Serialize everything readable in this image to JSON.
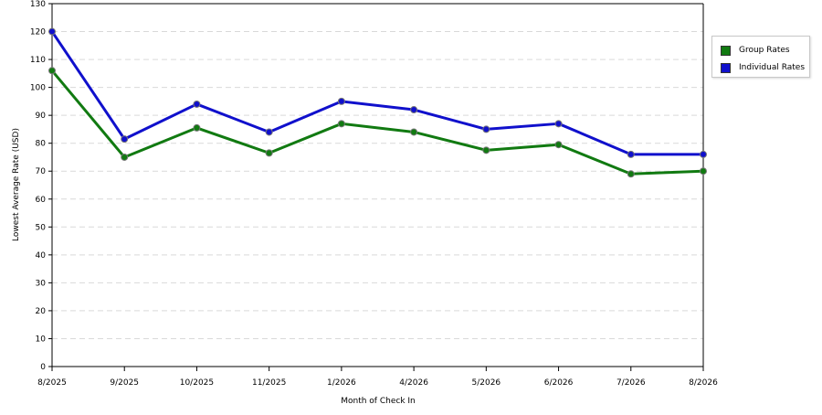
{
  "chart_data": {
    "type": "line",
    "xlabel": "Month of Check In",
    "ylabel": "Lowest Average Rate (USD)",
    "categories": [
      "8/2025",
      "9/2025",
      "10/2025",
      "11/2025",
      "1/2026",
      "4/2026",
      "5/2026",
      "6/2026",
      "7/2026",
      "8/2026"
    ],
    "ylim": [
      0,
      130
    ],
    "yticks": [
      "0",
      "10",
      "20",
      "30",
      "40",
      "50",
      "60",
      "70",
      "80",
      "90",
      "100",
      "110",
      "120",
      "130"
    ],
    "grid": true,
    "legend_position": "top-right",
    "series": [
      {
        "name": "Group Rates",
        "color": "#117a11",
        "values": [
          106,
          75,
          85.5,
          76.5,
          87,
          84,
          77.5,
          79.5,
          69,
          70
        ]
      },
      {
        "name": "Individual Rates",
        "color": "#1010cc",
        "values": [
          120,
          81.5,
          94,
          84,
          95,
          92,
          85,
          87,
          76,
          76
        ]
      }
    ]
  }
}
